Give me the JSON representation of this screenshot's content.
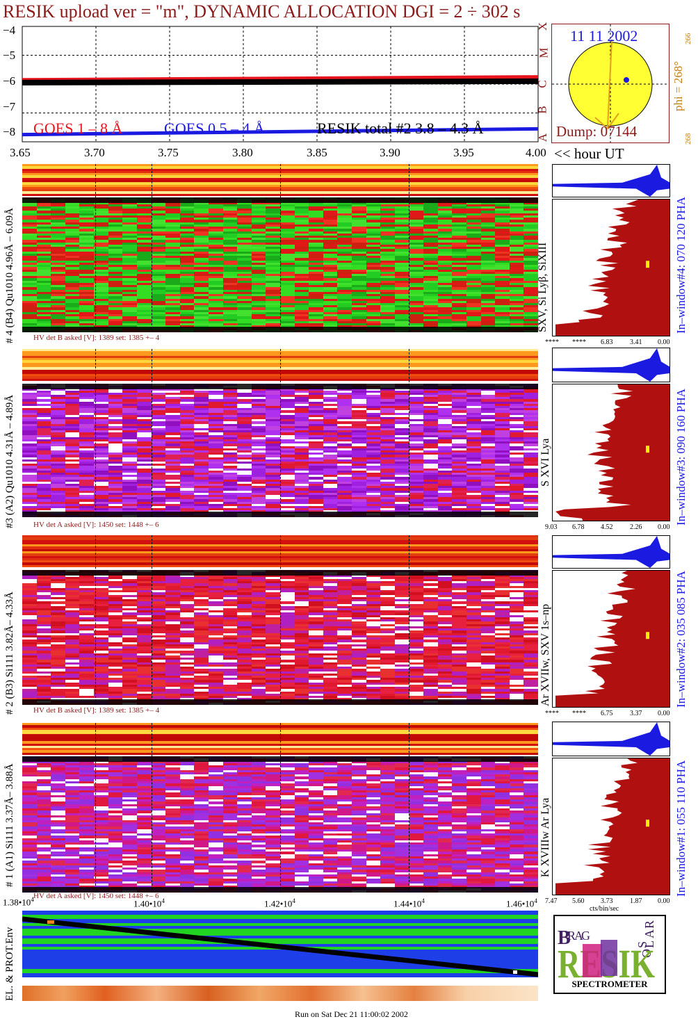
{
  "title": "RESIK upload ver = \"m\", DYNAMIC ALLOCATION  DGI =   2 ÷ 302 s",
  "goes": {
    "yticks": [
      "−4",
      "−5",
      "−6",
      "−7",
      "−8"
    ],
    "legend": [
      "GOES 1 – 8 Å",
      "GOES 0.5 – 4 Å",
      "RESIK total #2  3.8 – 4.3 Å"
    ],
    "legend_colors": [
      "#e8141e",
      "#1a1ae0",
      "#000000"
    ],
    "class_letters": [
      "X",
      "M",
      "C",
      "B",
      "A"
    ]
  },
  "sun": {
    "date": "11 11 2002",
    "dump": "Dump: 07144",
    "phi": "phi = 268°",
    "phi_sup": "266",
    "phi_low": "268"
  },
  "time_axis": {
    "ticks": [
      "3.65",
      "3.70",
      "3.75",
      "3.80",
      "3.85",
      "3.90",
      "3.95",
      "4.00"
    ],
    "unit": "<< hour UT"
  },
  "panels": [
    {
      "left_label": "# 4 (B4) Qu1010 4.96Å – 6.09Å",
      "line_label": "SXV, Si Lyβ, SiXIII",
      "window_label": "In–window#4:  070 120 PHA",
      "hv": "HV det B asked [V]:  1389 set:  1385 +–    4",
      "pha_ticks": [
        "****",
        "****",
        "6.83",
        "3.41",
        "0.00"
      ]
    },
    {
      "left_label": "#3 (A2) Qu1010  4.31Å – 4.89Å",
      "line_label": "S XVI Lya",
      "window_label": "In–window#3:  090 160 PHA",
      "hv": "HV det A asked [V]:  1450 set:  1448 +–    6",
      "pha_ticks": [
        "9.03",
        "6.78",
        "4.52",
        "2.26",
        "0.00"
      ]
    },
    {
      "left_label": "# 2 (B3) Si111  3.82Å– 4.33Å",
      "line_label": "Ar XVIIw,  SXV 1s–np",
      "window_label": "In–window#2:  035 085 PHA",
      "hv": "HV det B asked [V]:  1389 set:  1385 +–    4",
      "pha_ticks": [
        "****",
        "****",
        "6.75",
        "3.37",
        "0.00"
      ]
    },
    {
      "left_label": "# 1 (A1) Si111  3.37Å– 3.88Å",
      "line_label": "K XVIIIw  Ar Lya",
      "window_label": "In–window#1:  055 110 PHA",
      "hv": "HV det A asked [V]:  1450 set:  1448 +–    6",
      "pha_ticks": [
        "7.47",
        "5.60",
        "3.73",
        "1.87",
        "0.00"
      ]
    }
  ],
  "pha_unit": "cts/bin/sec",
  "env": {
    "label": "EL. & PROT.Env",
    "ticks_base": [
      "1.38•10",
      "1.40•10",
      "1.42•10",
      "1.44•10",
      "1.46•10"
    ],
    "ticks_exp": "4"
  },
  "logo": {
    "big": "RESIK",
    "letters": [
      "B",
      "R",
      "A",
      "G",
      "S",
      "O",
      "L",
      "A",
      "R"
    ],
    "caption": "SPECTROMETER"
  },
  "footer": "Run on Sat Dec 21 11:00:02 2002",
  "chart_data": {
    "type": "line",
    "x_label": "<< hour UT",
    "x_range": [
      3.65,
      4.0
    ],
    "y_range": [
      -8,
      -4
    ],
    "series": [
      {
        "name": "GOES 1 – 8 Å",
        "x": [
          3.65,
          4.0
        ],
        "y": [
          -5.85,
          -5.75
        ]
      },
      {
        "name": "GOES 0.5 – 4 Å",
        "x": [
          3.65,
          4.0
        ],
        "y": [
          -7.75,
          -7.55
        ]
      },
      {
        "name": "RESIK total #2  3.8 – 4.3 Å",
        "x": [
          3.65,
          4.0
        ],
        "y": [
          -5.95,
          -5.9
        ]
      }
    ]
  }
}
